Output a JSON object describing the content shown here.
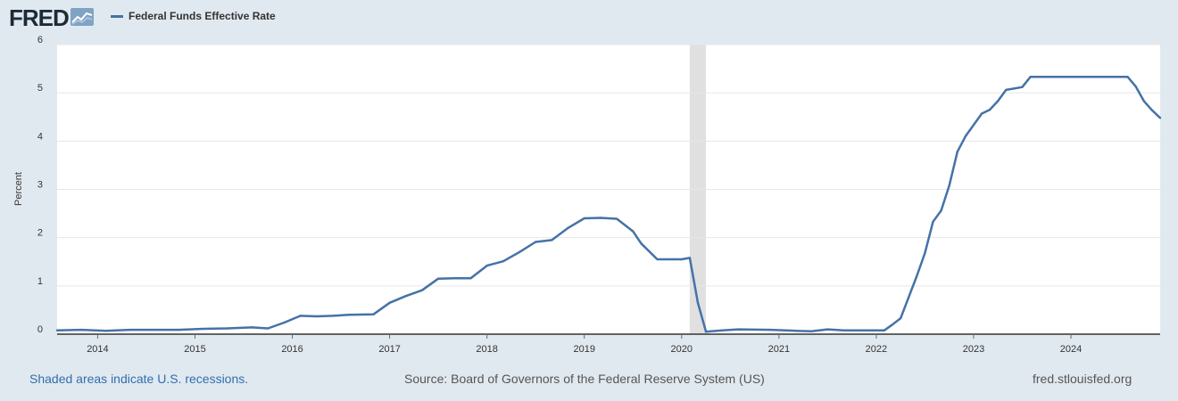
{
  "header": {
    "logo_text": "FRED",
    "legend_label": "Federal Funds Effective Rate",
    "series_color": "#4572a7",
    "logo_icon": "fred-graph-icon"
  },
  "footer": {
    "recession_note": "Shaded areas indicate U.S. recessions.",
    "source": "Source: Board of Governors of the Federal Reserve System (US)",
    "site": "fred.stlouisfed.org"
  },
  "chart_data": {
    "type": "line",
    "ylabel": "Percent",
    "ylim": [
      0,
      6
    ],
    "y_ticks": [
      "0",
      "1",
      "2",
      "3",
      "4",
      "5",
      "6"
    ],
    "x_ticks": [
      "2014",
      "2015",
      "2016",
      "2017",
      "2018",
      "2019",
      "2020",
      "2021",
      "2022",
      "2023",
      "2024"
    ],
    "xlim": [
      "2013-08",
      "2024-12"
    ],
    "grid": true,
    "recession_shading": [
      {
        "start": "2020-02",
        "end": "2020-04",
        "color": "#e0e0e0"
      }
    ],
    "series": [
      {
        "name": "Federal Funds Effective Rate",
        "color": "#4572a7",
        "points": [
          [
            "2013-08",
            0.08
          ],
          [
            "2013-11",
            0.09
          ],
          [
            "2014-02",
            0.07
          ],
          [
            "2014-05",
            0.09
          ],
          [
            "2014-08",
            0.09
          ],
          [
            "2014-11",
            0.09
          ],
          [
            "2015-02",
            0.11
          ],
          [
            "2015-05",
            0.12
          ],
          [
            "2015-08",
            0.14
          ],
          [
            "2015-10",
            0.12
          ],
          [
            "2015-12",
            0.24
          ],
          [
            "2016-02",
            0.38
          ],
          [
            "2016-04",
            0.37
          ],
          [
            "2016-06",
            0.38
          ],
          [
            "2016-08",
            0.4
          ],
          [
            "2016-11",
            0.41
          ],
          [
            "2017-01",
            0.65
          ],
          [
            "2017-03",
            0.79
          ],
          [
            "2017-05",
            0.91
          ],
          [
            "2017-07",
            1.15
          ],
          [
            "2017-09",
            1.16
          ],
          [
            "2017-11",
            1.16
          ],
          [
            "2018-01",
            1.42
          ],
          [
            "2018-03",
            1.51
          ],
          [
            "2018-05",
            1.7
          ],
          [
            "2018-07",
            1.91
          ],
          [
            "2018-09",
            1.95
          ],
          [
            "2018-11",
            2.2
          ],
          [
            "2019-01",
            2.4
          ],
          [
            "2019-03",
            2.41
          ],
          [
            "2019-05",
            2.39
          ],
          [
            "2019-07",
            2.13
          ],
          [
            "2019-08",
            1.88
          ],
          [
            "2019-10",
            1.55
          ],
          [
            "2019-12",
            1.55
          ],
          [
            "2020-01",
            1.55
          ],
          [
            "2020-02",
            1.58
          ],
          [
            "2020-03",
            0.65
          ],
          [
            "2020-04",
            0.05
          ],
          [
            "2020-06",
            0.08
          ],
          [
            "2020-08",
            0.1
          ],
          [
            "2020-12",
            0.09
          ],
          [
            "2021-03",
            0.07
          ],
          [
            "2021-05",
            0.06
          ],
          [
            "2021-07",
            0.1
          ],
          [
            "2021-09",
            0.08
          ],
          [
            "2022-02",
            0.08
          ],
          [
            "2022-03",
            0.2
          ],
          [
            "2022-04",
            0.33
          ],
          [
            "2022-05",
            0.77
          ],
          [
            "2022-06",
            1.21
          ],
          [
            "2022-07",
            1.68
          ],
          [
            "2022-08",
            2.33
          ],
          [
            "2022-09",
            2.56
          ],
          [
            "2022-10",
            3.08
          ],
          [
            "2022-11",
            3.78
          ],
          [
            "2022-12",
            4.1
          ],
          [
            "2023-02",
            4.57
          ],
          [
            "2023-03",
            4.65
          ],
          [
            "2023-04",
            4.83
          ],
          [
            "2023-05",
            5.06
          ],
          [
            "2023-07",
            5.12
          ],
          [
            "2023-08",
            5.33
          ],
          [
            "2024-08",
            5.33
          ],
          [
            "2024-09",
            5.13
          ],
          [
            "2024-10",
            4.83
          ],
          [
            "2024-11",
            4.64
          ],
          [
            "2024-12",
            4.48
          ]
        ]
      }
    ]
  }
}
